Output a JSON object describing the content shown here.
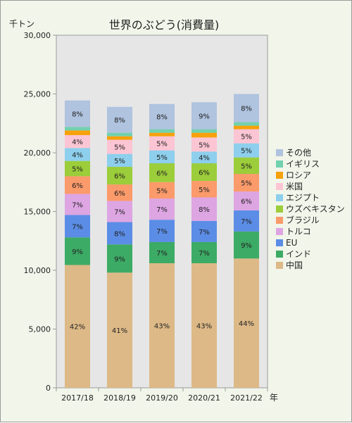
{
  "chart_data": {
    "type": "bar",
    "stacked": true,
    "title": "世界のぶどう(消費量)",
    "y_unit": "千トン",
    "x_unit": "年",
    "ylim": [
      0,
      30000
    ],
    "y_ticks": [
      "0",
      "5,000",
      "10,000",
      "15,000",
      "20,000",
      "25,000",
      "30,000"
    ],
    "y_tick_values": [
      0,
      5000,
      10000,
      15000,
      20000,
      25000,
      30000
    ],
    "grid": false,
    "legend_position": "right",
    "categories": [
      "2017/18",
      "2018/19",
      "2019/20",
      "2020/21",
      "2021/22"
    ],
    "series": [
      {
        "name": "中国",
        "color": "#ddb987",
        "values": [
          10450,
          9800,
          10600,
          10600,
          11000
        ],
        "labels": [
          "42%",
          "41%",
          "43%",
          "43%",
          "44%"
        ]
      },
      {
        "name": "インド",
        "color": "#3cab65",
        "values": [
          2350,
          2400,
          1800,
          1800,
          2300
        ],
        "labels": [
          "9%",
          "9%",
          "7%",
          "7%",
          "9%"
        ]
      },
      {
        "name": "EU",
        "color": "#5b8de6",
        "values": [
          1900,
          1900,
          1900,
          1800,
          1800
        ],
        "labels": [
          "7%",
          "8%",
          "7%",
          "7%",
          "7%"
        ]
      },
      {
        "name": "トルコ",
        "color": "#dea5e3",
        "values": [
          1800,
          1800,
          1800,
          2000,
          1600
        ],
        "labels": [
          "7%",
          "7%",
          "7%",
          "8%",
          "6%"
        ]
      },
      {
        "name": "ブラジル",
        "color": "#fb9a6a",
        "values": [
          1500,
          1400,
          1400,
          1400,
          1500
        ],
        "labels": [
          "6%",
          "6%",
          "5%",
          "5%",
          "5%"
        ]
      },
      {
        "name": "ウズベキスタン",
        "color": "#9ccd3a",
        "values": [
          1300,
          1500,
          1600,
          1500,
          1400
        ],
        "labels": [
          "5%",
          "6%",
          "6%",
          "6%",
          "5%"
        ]
      },
      {
        "name": "エジプト",
        "color": "#8dcfed",
        "values": [
          1100,
          1100,
          1100,
          1000,
          1200
        ],
        "labels": [
          "4%",
          "5%",
          "5%",
          "4%",
          "5%"
        ]
      },
      {
        "name": "米国",
        "color": "#fcc5d3",
        "values": [
          1100,
          1200,
          1200,
          1200,
          1200
        ],
        "labels": [
          "4%",
          "5%",
          "5%",
          "5%",
          "5%"
        ]
      },
      {
        "name": "ロシア",
        "color": "#f7a10b",
        "values": [
          400,
          300,
          300,
          400,
          300
        ],
        "labels": [
          "",
          "",
          "",
          "",
          ""
        ]
      },
      {
        "name": "イギリス",
        "color": "#72d1ae",
        "values": [
          300,
          300,
          300,
          300,
          300
        ],
        "labels": [
          "",
          "",
          "",
          "",
          ""
        ]
      },
      {
        "name": "その他",
        "color": "#b0c3df",
        "values": [
          2250,
          2200,
          2150,
          2300,
          2400
        ],
        "labels": [
          "8%",
          "8%",
          "8%",
          "9%",
          "8%"
        ]
      }
    ]
  }
}
